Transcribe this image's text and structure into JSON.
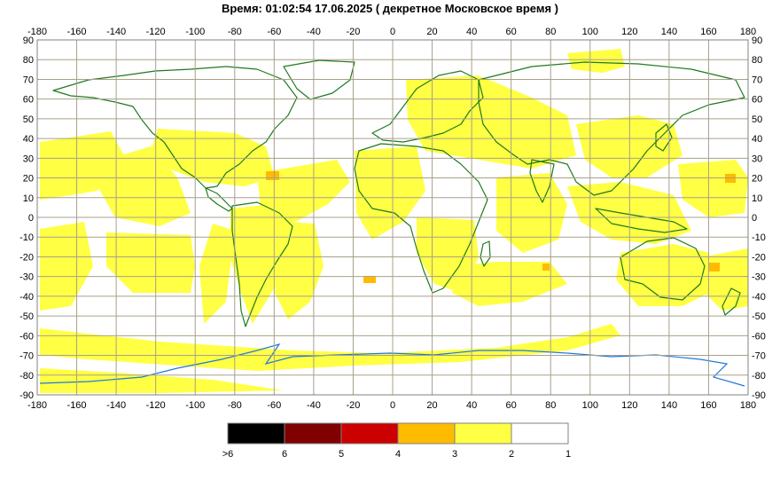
{
  "title": "Время: 01:02:54   17.06.2025  ( декретное Московское время )",
  "map": {
    "x_ticks": [
      "-180",
      "-160",
      "-140",
      "-120",
      "-100",
      "-80",
      "-60",
      "-40",
      "-20",
      "0",
      "20",
      "40",
      "60",
      "80",
      "100",
      "120",
      "140",
      "160",
      "180"
    ],
    "y_ticks": [
      "90",
      "80",
      "70",
      "60",
      "50",
      "40",
      "30",
      "20",
      "10",
      "0",
      "-10",
      "-20",
      "-30",
      "-40",
      "-50",
      "-60",
      "-70",
      "-80",
      "-90"
    ],
    "colors": {
      "grid": "#a9a08a",
      "frame": "#808080",
      "land_outline": "#1e7a1e",
      "antarctic_outline": "#1e78dc",
      "level_2_3": "#ffff44",
      "level_3_4": "#ffbb00"
    }
  },
  "legend": {
    "swatches": [
      {
        "color": "#000000"
      },
      {
        "color": "#800000"
      },
      {
        "color": "#cc0000"
      },
      {
        "color": "#ffbb00"
      },
      {
        "color": "#ffff44"
      },
      {
        "color": "#ffffff"
      }
    ],
    "labels": [
      ">6",
      "6",
      "5",
      "4",
      "3",
      "2",
      "1"
    ]
  }
}
